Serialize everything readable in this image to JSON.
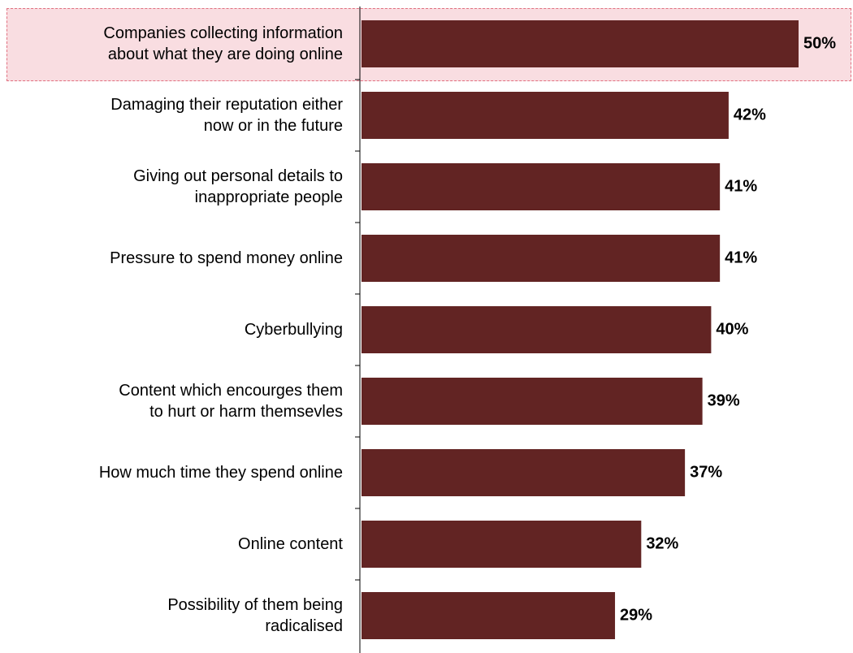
{
  "chart_data": {
    "type": "barh",
    "categories": [
      "Companies collecting information\nabout what they are doing online",
      "Damaging their reputation either\nnow or in the future",
      "Giving out personal details to\ninappropriate people",
      "Pressure to spend money online",
      "Cyberbullying",
      "Content which encourges them\nto hurt or harm themsevles",
      "How much time they spend online",
      "Online content",
      "Possibility of them being\nradicalised"
    ],
    "values": [
      50,
      42,
      41,
      41,
      40,
      39,
      37,
      32,
      29
    ],
    "value_labels": [
      "50%",
      "42%",
      "41%",
      "41%",
      "40%",
      "39%",
      "37%",
      "32%",
      "29%"
    ],
    "color": "#622423",
    "highlight": 0
  }
}
